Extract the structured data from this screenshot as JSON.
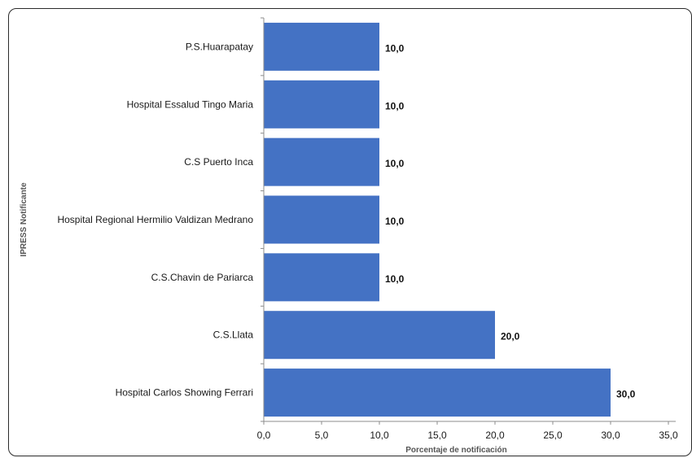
{
  "colors": {
    "bar": "#4472C4",
    "axis": "#8c8c8c",
    "text": "#1a1a1a"
  },
  "chart_data": {
    "type": "bar",
    "orientation": "horizontal",
    "categories": [
      "P.S.Huarapatay",
      "Hospital Essalud Tingo Maria",
      "C.S Puerto Inca",
      "Hospital Regional Hermilio Valdizan Medrano",
      "C.S.Chavin de Pariarca",
      "C.S.Llata",
      "Hospital Carlos Showing Ferrari"
    ],
    "values": [
      10.0,
      10.0,
      10.0,
      10.0,
      10.0,
      20.0,
      30.0
    ],
    "data_labels": [
      "10,0",
      "10,0",
      "10,0",
      "10,0",
      "10,0",
      "20,0",
      "30,0"
    ],
    "xlabel": "Porcentaje de notificación",
    "ylabel": "IPRESS Notificante",
    "xlim": [
      0,
      35
    ],
    "xticks": [
      0,
      5,
      10,
      15,
      20,
      25,
      30,
      35
    ],
    "xtick_labels": [
      "0,0",
      "5,0",
      "10,0",
      "15,0",
      "20,0",
      "25,0",
      "30,0",
      "35,0"
    ],
    "grid": false,
    "legend": "none"
  }
}
